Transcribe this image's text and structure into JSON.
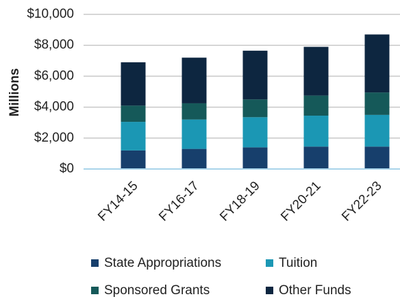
{
  "chart_data": {
    "type": "bar",
    "stacked": true,
    "y_label": "Millions",
    "categories": [
      "FY14-15",
      "FY16-17",
      "FY18-19",
      "FY20-21",
      "FY22-23"
    ],
    "series": [
      {
        "name": "State Appropriations",
        "color": "#173f6c",
        "values": [
          1200,
          1300,
          1400,
          1450,
          1450
        ]
      },
      {
        "name": "Tuition",
        "color": "#1b97b4",
        "values": [
          1850,
          1900,
          1950,
          2000,
          2050
        ]
      },
      {
        "name": "Sponsored Grants",
        "color": "#155959",
        "values": [
          1050,
          1050,
          1150,
          1300,
          1450
        ]
      },
      {
        "name": "Other Funds",
        "color": "#0d2640",
        "values": [
          2800,
          2950,
          3150,
          3150,
          3750
        ]
      }
    ],
    "ylim": [
      0,
      10000
    ],
    "yticks": [
      {
        "value": 0,
        "label": "$0"
      },
      {
        "value": 2000,
        "label": "$2,000"
      },
      {
        "value": 4000,
        "label": "$4,000"
      },
      {
        "value": 6000,
        "label": "$6,000"
      },
      {
        "value": 8000,
        "label": "$8,000"
      },
      {
        "value": 10000,
        "label": "$10,000"
      }
    ],
    "grid": true,
    "legend": "bottom"
  }
}
